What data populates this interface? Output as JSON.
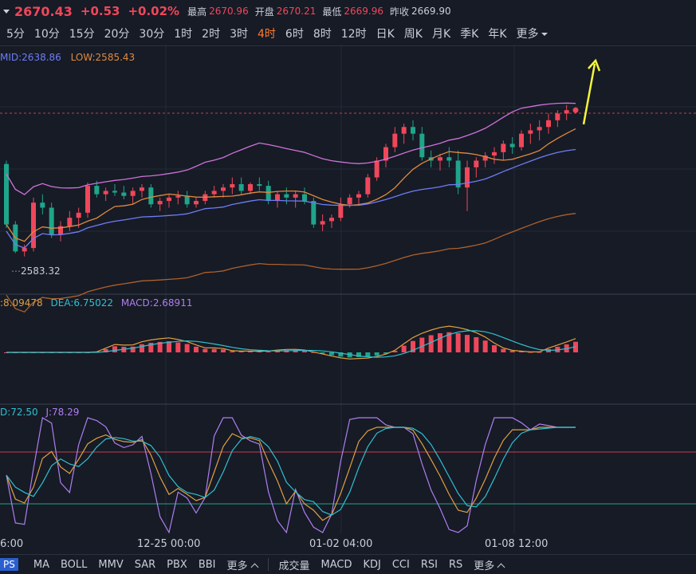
{
  "header": {
    "price": "2670.43",
    "change": "+0.53",
    "change_pct": "+0.02%",
    "high_label": "最高",
    "high": "2670.96",
    "open_label": "开盘",
    "open": "2670.21",
    "low_label": "最低",
    "low": "2669.96",
    "prev_close_label": "昨收",
    "prev_close": "2669.90"
  },
  "intervals": [
    "5分",
    "10分",
    "15分",
    "20分",
    "30分",
    "1时",
    "2时",
    "3时",
    "4时",
    "6时",
    "8时",
    "12时",
    "日K",
    "周K",
    "月K",
    "季K",
    "年K"
  ],
  "active_interval": "4时",
  "more_label": "更多",
  "main_legend": {
    "mid": "MID:2638.86",
    "low": "LOW:2585.43"
  },
  "low_marker": "2583.32",
  "macd_legend": {
    "dif": ":8.09478",
    "dea": "DEA:6.75022",
    "macd": "MACD:2.68911"
  },
  "kdj_legend": {
    "d": "D:72.50",
    "j": "J:78.29"
  },
  "x_labels": [
    "6:00",
    "12-25 00:00",
    "01-02 04:00",
    "01-08 12:00"
  ],
  "indicators_main": [
    "PS",
    "MA",
    "BOLL",
    "MMV",
    "SAR",
    "PBX",
    "BBI"
  ],
  "indicators_sub": [
    "成交量",
    "MACD",
    "KDJ",
    "CCI",
    "RSI",
    "RS"
  ],
  "colors": {
    "up": "#f0475a",
    "down": "#1fa58a",
    "accent": "#ff7a2f",
    "mid": "#6f7cf5",
    "low": "#e08a3e",
    "upper": "#d072d8",
    "arrow": "#f5f53a"
  },
  "chart_data": {
    "type": "candlestick",
    "ylim": [
      2580,
      2690
    ],
    "candles": [
      [
        2638,
        2640,
        2600,
        2602
      ],
      [
        2602,
        2604,
        2585,
        2586
      ],
      [
        2586,
        2590,
        2583,
        2588
      ],
      [
        2588,
        2618,
        2586,
        2615
      ],
      [
        2615,
        2620,
        2608,
        2612
      ],
      [
        2612,
        2615,
        2594,
        2596
      ],
      [
        2596,
        2604,
        2592,
        2601
      ],
      [
        2601,
        2610,
        2598,
        2606
      ],
      [
        2606,
        2612,
        2600,
        2609
      ],
      [
        2609,
        2627,
        2606,
        2625
      ],
      [
        2625,
        2628,
        2618,
        2620
      ],
      [
        2620,
        2624,
        2616,
        2622
      ],
      [
        2622,
        2626,
        2619,
        2621
      ],
      [
        2621,
        2625,
        2617,
        2619
      ],
      [
        2619,
        2624,
        2614,
        2622
      ],
      [
        2622,
        2626,
        2618,
        2624
      ],
      [
        2624,
        2626,
        2612,
        2614
      ],
      [
        2614,
        2618,
        2610,
        2616
      ],
      [
        2616,
        2620,
        2612,
        2618
      ],
      [
        2618,
        2622,
        2614,
        2619
      ],
      [
        2619,
        2622,
        2612,
        2614
      ],
      [
        2614,
        2618,
        2612,
        2616
      ],
      [
        2616,
        2622,
        2614,
        2620
      ],
      [
        2620,
        2625,
        2618,
        2622
      ],
      [
        2622,
        2626,
        2618,
        2624
      ],
      [
        2624,
        2630,
        2620,
        2626
      ],
      [
        2626,
        2630,
        2620,
        2622
      ],
      [
        2622,
        2627,
        2620,
        2626
      ],
      [
        2626,
        2630,
        2622,
        2625
      ],
      [
        2625,
        2628,
        2614,
        2616
      ],
      [
        2616,
        2622,
        2612,
        2620
      ],
      [
        2620,
        2624,
        2614,
        2618
      ],
      [
        2618,
        2622,
        2612,
        2620
      ],
      [
        2620,
        2624,
        2614,
        2616
      ],
      [
        2616,
        2618,
        2600,
        2602
      ],
      [
        2602,
        2608,
        2598,
        2604
      ],
      [
        2604,
        2608,
        2600,
        2606
      ],
      [
        2606,
        2618,
        2604,
        2614
      ],
      [
        2614,
        2620,
        2612,
        2618
      ],
      [
        2618,
        2622,
        2614,
        2620
      ],
      [
        2620,
        2632,
        2618,
        2630
      ],
      [
        2630,
        2642,
        2628,
        2640
      ],
      [
        2640,
        2650,
        2636,
        2648
      ],
      [
        2648,
        2660,
        2645,
        2656
      ],
      [
        2656,
        2662,
        2650,
        2660
      ],
      [
        2660,
        2664,
        2652,
        2656
      ],
      [
        2656,
        2660,
        2640,
        2642
      ],
      [
        2642,
        2646,
        2636,
        2640
      ],
      [
        2640,
        2644,
        2634,
        2642
      ],
      [
        2642,
        2648,
        2636,
        2640
      ],
      [
        2640,
        2646,
        2620,
        2624
      ],
      [
        2624,
        2640,
        2610,
        2636
      ],
      [
        2636,
        2642,
        2630,
        2640
      ],
      [
        2640,
        2645,
        2636,
        2643
      ],
      [
        2643,
        2648,
        2638,
        2645
      ],
      [
        2645,
        2652,
        2640,
        2650
      ],
      [
        2650,
        2654,
        2644,
        2648
      ],
      [
        2648,
        2658,
        2646,
        2656
      ],
      [
        2656,
        2662,
        2650,
        2658
      ],
      [
        2658,
        2664,
        2652,
        2660
      ],
      [
        2660,
        2668,
        2656,
        2664
      ],
      [
        2664,
        2670,
        2660,
        2668
      ],
      [
        2668,
        2673,
        2664,
        2670
      ],
      [
        2670,
        2671,
        2669,
        2670
      ]
    ],
    "series": [
      {
        "name": "MID",
        "values_note": "moving average"
      },
      {
        "name": "LOW"
      }
    ]
  }
}
